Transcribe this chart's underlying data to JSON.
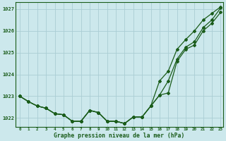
{
  "title": "Graphe pression niveau de la mer (hPa)",
  "bg_color": "#cce8ec",
  "grid_color": "#aacdd4",
  "line_color": "#1a5c1a",
  "xlim_min": -0.5,
  "xlim_max": 23.3,
  "ylim_min": 1021.6,
  "ylim_max": 1027.3,
  "yticks": [
    1022,
    1023,
    1024,
    1025,
    1026
  ],
  "ytick_top": 1027,
  "xticks": [
    0,
    1,
    2,
    3,
    4,
    5,
    6,
    7,
    8,
    9,
    10,
    11,
    12,
    13,
    14,
    15,
    16,
    17,
    18,
    19,
    20,
    21,
    22,
    23
  ],
  "series": [
    [
      1023.0,
      1022.75,
      1022.55,
      1022.45,
      1022.2,
      1022.15,
      1021.85,
      1021.85,
      1022.35,
      1022.25,
      1021.85,
      1021.85,
      1021.75,
      1022.05,
      1022.05,
      1022.55,
      1023.05,
      1023.15,
      1024.6,
      1025.15,
      1025.35,
      1026.0,
      1026.35,
      1026.85
    ],
    [
      1023.0,
      1022.75,
      1022.55,
      1022.45,
      1022.2,
      1022.15,
      1021.85,
      1021.85,
      1022.35,
      1022.25,
      1021.85,
      1021.85,
      1021.75,
      1022.05,
      1022.05,
      1022.55,
      1023.05,
      1023.7,
      1024.7,
      1025.25,
      1025.5,
      1026.15,
      1026.5,
      1027.05
    ],
    [
      1023.0,
      1022.75,
      1022.55,
      1022.45,
      1022.2,
      1022.15,
      1021.85,
      1021.85,
      1022.35,
      1022.25,
      1021.85,
      1021.85,
      1021.75,
      1022.05,
      1022.05,
      1022.55,
      1023.7,
      1024.15,
      1025.15,
      1025.6,
      1026.0,
      1026.5,
      1026.8,
      1027.1
    ]
  ]
}
